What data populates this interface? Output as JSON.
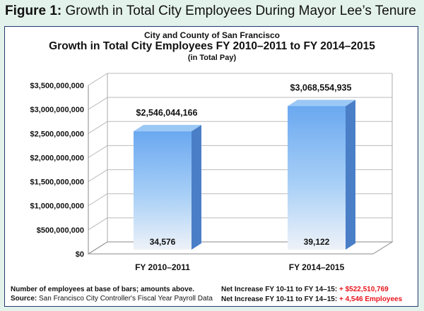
{
  "figure": {
    "label": "Figure 1:",
    "title": "Growth in Total City Employees During Mayor Lee’s Tenure"
  },
  "chart_data": {
    "type": "bar",
    "supertitle": "City and County of San Francisco",
    "title": "Growth in Total City Employees FY 2010–2011 to FY 2014–2015",
    "subtitle": "(in Total Pay)",
    "categories": [
      "FY 2010–2011",
      "FY 2014–2015"
    ],
    "values": [
      2546044166,
      3068554935
    ],
    "value_labels": [
      "$2,546,044,166",
      "$3,068,554,935"
    ],
    "employee_counts": [
      "34,576",
      "39,122"
    ],
    "ylim": [
      0,
      3500000000
    ],
    "yticks": [
      0,
      500000000,
      1000000000,
      1500000000,
      2000000000,
      2500000000,
      3000000000,
      3500000000
    ],
    "ytick_labels": [
      "$0",
      "$500,000,000",
      "$1,000,000,000",
      "$1,500,000,000",
      "$2,000,000,000",
      "$2,500,000,000",
      "$3,000,000,000",
      "$3,500,000,000"
    ],
    "grid": true,
    "legend": "none",
    "colors": {
      "bar_top": "#6aa8f0",
      "bar_bottom": "#eef2f8",
      "bar_side": "#4a7fc8",
      "bar_cap": "#9cc8f6",
      "grid": "#bbbbbb"
    }
  },
  "notes": {
    "left_line1": "Number of employees at base of bars; amounts above.",
    "source_label": "Source:",
    "source_text": "San Francisco City Controller's Fiscal Year Payroll Data",
    "right_line1_label": "Net Increase FY 10-11 to FY 14–15:",
    "right_line1_value": "+ $522,510,769",
    "right_line2_label": "Net Increase FY 10-11 to FY 14–15:",
    "right_line2_value": "+ 4,546 Employees"
  }
}
